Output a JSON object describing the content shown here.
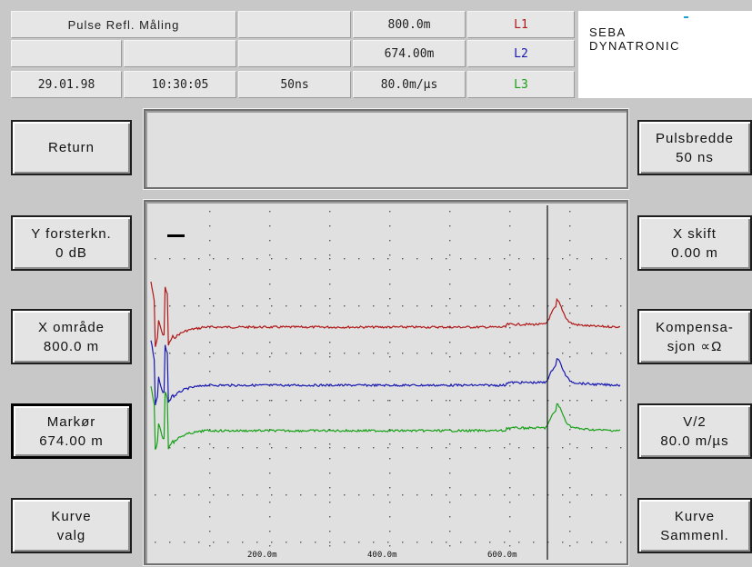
{
  "header": {
    "title": "Pulse Refl. Måling",
    "range_top": "800.0m",
    "range_mid": "674.00m",
    "velocity": "80.0m/µs",
    "date": "29.01.98",
    "time": "10:30:05",
    "pulse": "50ns",
    "l1": "L1",
    "l2": "L2",
    "l3": "L3",
    "l1_color": "#b01818",
    "l2_color": "#1818b0",
    "l3_color": "#18a018"
  },
  "logo": {
    "line1": "SEBA",
    "line2": "DYNATRONIC"
  },
  "left_buttons": {
    "return": "Return",
    "y_line1": "Y forsterkn.",
    "y_line2": "0 dB",
    "x_line1": "X område",
    "x_line2": "800.0 m",
    "m_line1": "Markør",
    "m_line2": "674.00 m",
    "k_line1": "Kurve",
    "k_line2": "valg"
  },
  "right_buttons": {
    "p_line1": "Pulsbredde",
    "p_line2": "50 ns",
    "xs_line1": "X skift",
    "xs_line2": "0.00 m",
    "ko_line1": "Kompensa-",
    "ko_line2": "sjon  ∝Ω",
    "v_line1": "V/2",
    "v_line2": "80.0 m/µs",
    "ks_line1": "Kurve",
    "ks_line2": "Sammenl."
  },
  "chart_data": {
    "type": "line",
    "x_ticks": [
      "200.0m",
      "400.0m",
      "600.0m"
    ],
    "xlim": [
      0,
      800
    ],
    "cursor_x": 674,
    "series": [
      {
        "color": "#b01818"
      },
      {
        "color": "#1818b0"
      },
      {
        "color": "#18a018"
      }
    ]
  }
}
